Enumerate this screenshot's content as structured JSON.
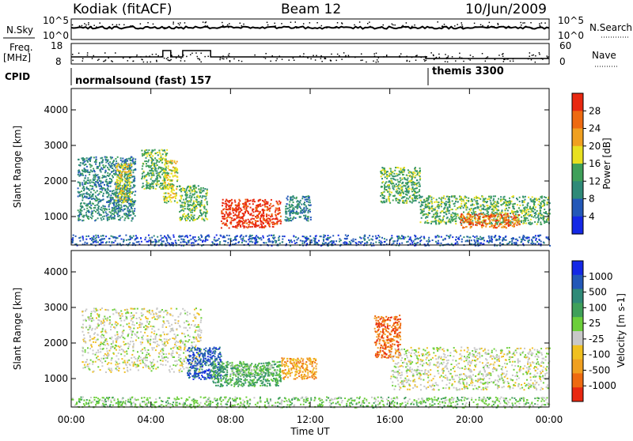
{
  "header": {
    "station": "Kodiak (fitACF)",
    "beam": "Beam 12",
    "date": "10/Jun/2009"
  },
  "sky_panel": {
    "label": "N.Sky",
    "left_ticks": [
      "10^5",
      "10^0"
    ],
    "right_ticks": [
      "10^5",
      "10^0"
    ],
    "right_label": "N.Search"
  },
  "freq_panel": {
    "label_line1": "Freq.",
    "label_line2": "[MHz]",
    "left_ticks": [
      "18",
      "8"
    ],
    "right_ticks": [
      "60",
      "0"
    ],
    "right_label": "Nave"
  },
  "cpid": {
    "label": "CPID",
    "modes": [
      {
        "start_hour": 0,
        "text": "normalsound (fast) 157"
      },
      {
        "start_hour": 18,
        "text": "themis 3300"
      }
    ]
  },
  "colors": {
    "power": [
      "#1428e6",
      "#2358b8",
      "#2f8a78",
      "#3fa05a",
      "#e8e020",
      "#f0a020",
      "#ee6a10",
      "#e82810"
    ],
    "velocity": [
      "#1428e6",
      "#2358b8",
      "#2f8a78",
      "#3fa05a",
      "#6ccf3a",
      "#c8c8c8",
      "#f0c020",
      "#f0a020",
      "#ee6a10",
      "#e82810"
    ]
  },
  "chart_data": [
    {
      "type": "heatmap",
      "panel": "power",
      "ylabel": "Slant Range [km]",
      "y_ticks": [
        1000,
        2000,
        3000,
        4000
      ],
      "ylim": [
        200,
        4600
      ],
      "x_ticks": [
        "00:00",
        "04:00",
        "08:00",
        "12:00",
        "16:00",
        "20:00",
        "00:00"
      ],
      "xlim_hours": [
        0,
        24
      ],
      "colorbar_label": "Power [dB]",
      "colorbar_ticks": [
        4,
        8,
        12,
        16,
        20,
        24,
        28
      ],
      "scatter_regions": [
        {
          "t0": 0.3,
          "t1": 3.2,
          "r0": 900,
          "r1": 2700,
          "level": 2
        },
        {
          "t0": 2.2,
          "t1": 3.0,
          "r0": 1400,
          "r1": 2500,
          "level": 4
        },
        {
          "t0": 3.5,
          "t1": 4.8,
          "r0": 1800,
          "r1": 2900,
          "level": 3
        },
        {
          "t0": 4.6,
          "t1": 5.3,
          "r0": 1400,
          "r1": 2600,
          "level": 4
        },
        {
          "t0": 5.4,
          "t1": 6.8,
          "r0": 900,
          "r1": 1900,
          "level": 3
        },
        {
          "t0": 7.5,
          "t1": 10.5,
          "r0": 700,
          "r1": 1500,
          "level": 7
        },
        {
          "t0": 10.7,
          "t1": 12.0,
          "r0": 900,
          "r1": 1600,
          "level": 2
        },
        {
          "t0": 15.5,
          "t1": 17.5,
          "r0": 1400,
          "r1": 2400,
          "level": 3
        },
        {
          "t0": 17.5,
          "t1": 24.0,
          "r0": 800,
          "r1": 1600,
          "level": 3
        },
        {
          "t0": 19.5,
          "t1": 22.5,
          "r0": 700,
          "r1": 1100,
          "level": 6
        },
        {
          "t0": 0.0,
          "t1": 24.0,
          "r0": 200,
          "r1": 500,
          "level": 1
        }
      ]
    },
    {
      "type": "heatmap",
      "panel": "velocity",
      "ylabel": "Slant Range [km]",
      "y_ticks": [
        1000,
        2000,
        3000,
        4000
      ],
      "ylim": [
        200,
        4600
      ],
      "x_ticks": [
        "00:00",
        "04:00",
        "08:00",
        "12:00",
        "16:00",
        "20:00",
        "00:00"
      ],
      "xlabel": "Time UT",
      "xlim_hours": [
        0,
        24
      ],
      "colorbar_label": "Velocity [m s-1]",
      "colorbar_ticks": [
        1000,
        500,
        100,
        25,
        -25,
        -100,
        -500,
        -1000
      ],
      "scatter_regions": [
        {
          "t0": 0.5,
          "t1": 6.5,
          "r0": 1200,
          "r1": 3000,
          "level": 5
        },
        {
          "t0": 5.8,
          "t1": 7.5,
          "r0": 1000,
          "r1": 1900,
          "level": 1
        },
        {
          "t0": 7.0,
          "t1": 10.5,
          "r0": 800,
          "r1": 1500,
          "level": 3
        },
        {
          "t0": 8.0,
          "t1": 10.5,
          "r0": 1100,
          "r1": 1400,
          "level": 4
        },
        {
          "t0": 10.5,
          "t1": 12.3,
          "r0": 1000,
          "r1": 1600,
          "level": 7
        },
        {
          "t0": 15.2,
          "t1": 16.5,
          "r0": 1600,
          "r1": 2800,
          "level": 8
        },
        {
          "t0": 16.0,
          "t1": 24.0,
          "r0": 700,
          "r1": 1900,
          "level": 5
        },
        {
          "t0": 0.0,
          "t1": 24.0,
          "r0": 200,
          "r1": 500,
          "level": 4
        }
      ]
    }
  ]
}
